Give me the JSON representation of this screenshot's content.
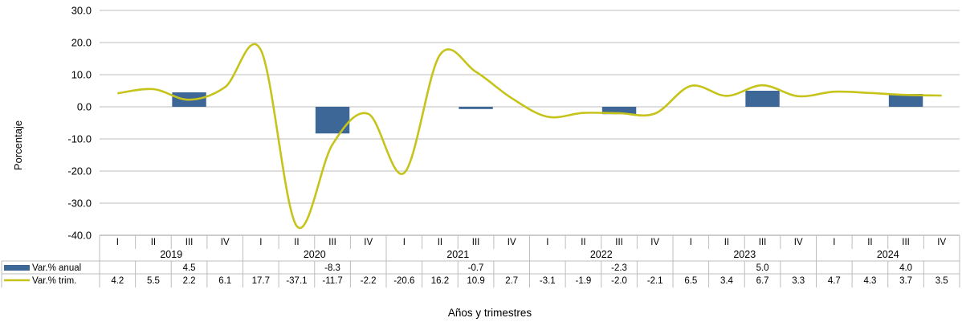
{
  "chart_data": {
    "type": "bar+line",
    "ylabel": "Porcentaje",
    "xlabel": "Años y trimestres",
    "ylim": [
      -40,
      30
    ],
    "yticks": [
      "30.0",
      "20.0",
      "10.0",
      "0.0",
      "-10.0",
      "-20.0",
      "-30.0",
      "-40.0"
    ],
    "ytick_values": [
      30,
      20,
      10,
      0,
      -10,
      -20,
      -30,
      -40
    ],
    "grid": true,
    "quarters": [
      "I",
      "II",
      "III",
      "IV",
      "I",
      "II",
      "III",
      "IV",
      "I",
      "II",
      "III",
      "IV",
      "I",
      "II",
      "III",
      "IV",
      "I",
      "II",
      "III",
      "IV",
      "I",
      "II",
      "III",
      "IV"
    ],
    "years": [
      "2019",
      "2020",
      "2021",
      "2022",
      "2023",
      "2024"
    ],
    "series": [
      {
        "name": "Var.% anual",
        "type": "bar",
        "color": "#3d6796",
        "values": [
          null,
          null,
          4.5,
          null,
          null,
          null,
          -8.3,
          null,
          null,
          null,
          -0.7,
          null,
          null,
          null,
          -2.3,
          null,
          null,
          null,
          5.0,
          null,
          null,
          null,
          4.0,
          null
        ],
        "labels": [
          "",
          "",
          "4.5",
          "",
          "",
          "",
          "-8.3",
          "",
          "",
          "",
          "-0.7",
          "",
          "",
          "",
          "-2.3",
          "",
          "",
          "",
          "5.0",
          "",
          "",
          "",
          "4.0",
          ""
        ]
      },
      {
        "name": "Var.% trim.",
        "type": "line",
        "color": "#c6c31b",
        "values": [
          4.2,
          5.5,
          2.2,
          6.1,
          17.7,
          -37.1,
          -11.7,
          -2.2,
          -20.6,
          16.2,
          10.9,
          2.7,
          -3.1,
          -1.9,
          -2.0,
          -2.1,
          6.5,
          3.4,
          6.7,
          3.3,
          4.7,
          4.3,
          3.7,
          3.5
        ],
        "labels": [
          "4.2",
          "5.5",
          "2.2",
          "6.1",
          "17.7",
          "-37.1",
          "-11.7",
          "-2.2",
          "-20.6",
          "16.2",
          "10.9",
          "2.7",
          "-3.1",
          "-1.9",
          "-2.0",
          "-2.1",
          "6.5",
          "3.4",
          "6.7",
          "3.3",
          "4.7",
          "4.3",
          "3.7",
          "3.5"
        ]
      }
    ]
  }
}
